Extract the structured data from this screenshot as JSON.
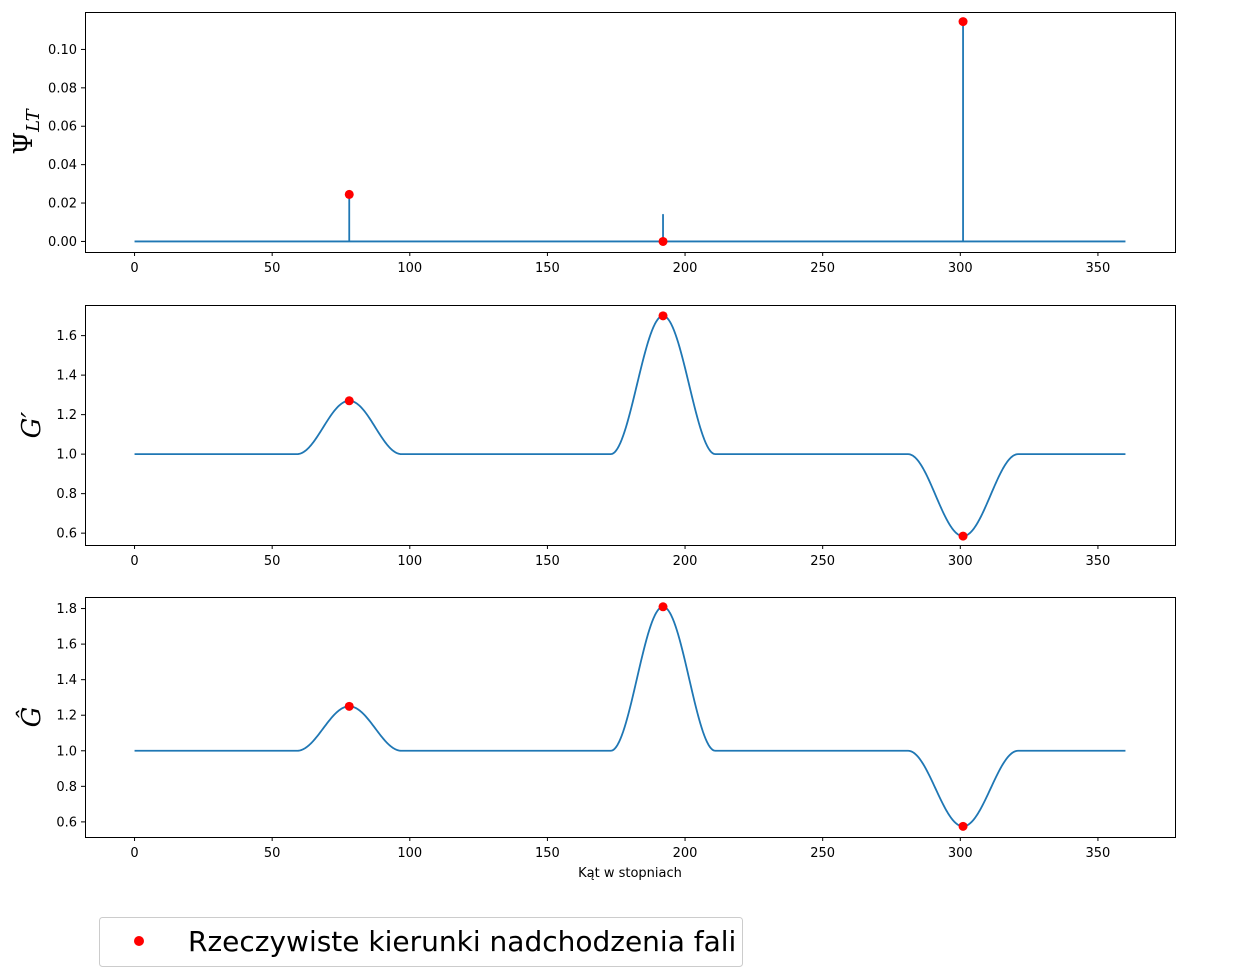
{
  "chart_data": [
    {
      "type": "line",
      "ylabel": "Ψ_LT",
      "xlabel": "",
      "xlim": [
        -18,
        378
      ],
      "ylim": [
        -0.0055,
        0.1195
      ],
      "xticks": [
        0,
        50,
        100,
        150,
        200,
        250,
        300,
        350
      ],
      "yticks": [
        0.0,
        0.02,
        0.04,
        0.06,
        0.08,
        0.1
      ],
      "ytick_labels": [
        "0.00",
        "0.02",
        "0.04",
        "0.06",
        "0.08",
        "0.10"
      ],
      "series": [
        {
          "kind": "stem-spectrum",
          "color": "#1f77b4",
          "x_range": [
            0,
            360
          ],
          "baseline": 0,
          "spikes": [
            {
              "x": 78,
              "y": 0.0245
            },
            {
              "x": 192,
              "y": 0.0139
            },
            {
              "x": 301,
              "y": 0.1145
            }
          ]
        }
      ],
      "markers": {
        "color": "#ff0000",
        "points": [
          {
            "x": 78,
            "y": 0.0245
          },
          {
            "x": 192,
            "y": 0.0
          },
          {
            "x": 301,
            "y": 0.1145
          }
        ]
      }
    },
    {
      "type": "line",
      "ylabel": "G′",
      "xlabel": "",
      "xlim": [
        -18,
        378
      ],
      "ylim": [
        0.54,
        1.755
      ],
      "xticks": [
        0,
        50,
        100,
        150,
        200,
        250,
        300,
        350
      ],
      "yticks": [
        0.6,
        0.8,
        1.0,
        1.2,
        1.4,
        1.6
      ],
      "ytick_labels": [
        "0.6",
        "0.8",
        "1.0",
        "1.2",
        "1.4",
        "1.6"
      ],
      "series": [
        {
          "kind": "bumps",
          "color": "#1f77b4",
          "x_range": [
            0,
            360
          ],
          "baseline": 1.0,
          "bumps": [
            {
              "center": 78,
              "halfwidth": 19,
              "peak": 1.27
            },
            {
              "center": 192,
              "halfwidth": 19,
              "peak": 1.7
            },
            {
              "center": 301,
              "halfwidth": 20,
              "peak": 0.585
            }
          ]
        }
      ],
      "markers": {
        "color": "#ff0000",
        "points": [
          {
            "x": 78,
            "y": 1.27
          },
          {
            "x": 192,
            "y": 1.7
          },
          {
            "x": 301,
            "y": 0.585
          }
        ]
      }
    },
    {
      "type": "line",
      "ylabel": "Ĝ",
      "xlabel": "Kąt w stopniach",
      "xlim": [
        -18,
        378
      ],
      "ylim": [
        0.515,
        1.865
      ],
      "xticks": [
        0,
        50,
        100,
        150,
        200,
        250,
        300,
        350
      ],
      "yticks": [
        0.6,
        0.8,
        1.0,
        1.2,
        1.4,
        1.6,
        1.8
      ],
      "ytick_labels": [
        "0.6",
        "0.8",
        "1.0",
        "1.2",
        "1.4",
        "1.6",
        "1.8"
      ],
      "series": [
        {
          "kind": "bumps",
          "color": "#1f77b4",
          "x_range": [
            0,
            360
          ],
          "baseline": 1.0,
          "bumps": [
            {
              "center": 78,
              "halfwidth": 19,
              "peak": 1.25
            },
            {
              "center": 192,
              "halfwidth": 19,
              "peak": 1.81
            },
            {
              "center": 301,
              "halfwidth": 20,
              "peak": 0.575
            }
          ]
        }
      ],
      "markers": {
        "color": "#ff0000",
        "points": [
          {
            "x": 78,
            "y": 1.25
          },
          {
            "x": 192,
            "y": 1.81
          },
          {
            "x": 301,
            "y": 0.575
          }
        ]
      }
    }
  ],
  "legend": {
    "label": "Rzeczywiste kierunki nadchodzenia fali",
    "marker_color": "#ff0000",
    "placement": "bottom-left"
  }
}
